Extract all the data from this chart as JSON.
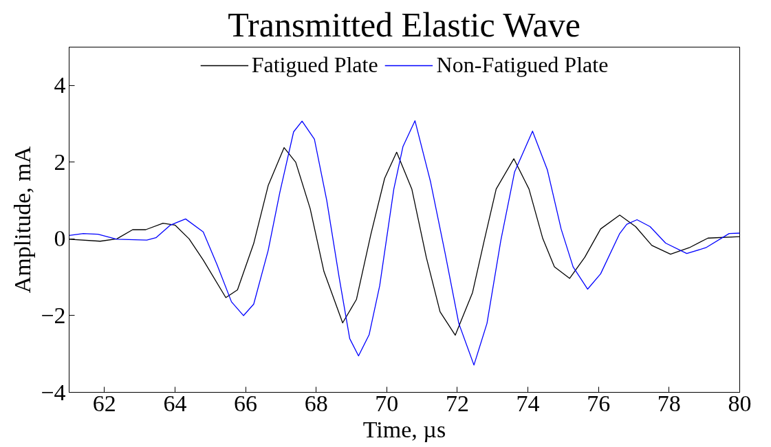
{
  "chart_data": {
    "type": "line",
    "title": "Transmitted Elastic Wave",
    "xlabel": "Time, µs",
    "ylabel": "Amplitude, mA",
    "xlim": [
      61,
      80
    ],
    "ylim": [
      -4,
      5
    ],
    "xticks": [
      62,
      64,
      66,
      68,
      70,
      72,
      74,
      76,
      78,
      80
    ],
    "yticks": [
      -4,
      -2,
      0,
      2,
      4
    ],
    "grid": false,
    "legend": "top",
    "marker": "none",
    "line_style": "solid",
    "series": [
      {
        "name": "Fatigued Plate",
        "color": "#000000",
        "x": [
          61,
          61.88,
          62.35,
          62.8,
          63.17,
          63.66,
          64.0,
          64.4,
          64.8,
          65.44,
          65.77,
          66.23,
          66.64,
          67.09,
          67.42,
          67.83,
          68.22,
          68.75,
          69.14,
          69.55,
          69.94,
          70.28,
          70.71,
          71.12,
          71.51,
          71.94,
          72.43,
          72.76,
          73.1,
          73.6,
          74.03,
          74.42,
          74.75,
          75.18,
          75.61,
          76.06,
          76.6,
          77.05,
          77.51,
          78.04,
          78.57,
          79.1,
          80
        ],
        "values": [
          -0.01,
          -0.06,
          0.0,
          0.24,
          0.24,
          0.41,
          0.36,
          0.0,
          -0.55,
          -1.53,
          -1.33,
          -0.12,
          1.39,
          2.38,
          2.0,
          0.79,
          -0.85,
          -2.19,
          -1.58,
          0.12,
          1.58,
          2.26,
          1.3,
          -0.48,
          -1.9,
          -2.51,
          -1.4,
          -0.05,
          1.3,
          2.09,
          1.3,
          0.01,
          -0.73,
          -1.03,
          -0.48,
          0.26,
          0.62,
          0.32,
          -0.17,
          -0.4,
          -0.23,
          0.02,
          0.06
        ]
      },
      {
        "name": "Non-Fatigued Plate",
        "color": "#0000ff",
        "x": [
          61,
          61.4,
          61.82,
          62.35,
          63.2,
          63.46,
          63.87,
          64.3,
          64.8,
          65.19,
          65.6,
          65.94,
          66.23,
          66.64,
          66.97,
          67.36,
          67.6,
          67.95,
          68.3,
          68.65,
          68.95,
          69.2,
          69.5,
          69.8,
          70.2,
          70.46,
          70.8,
          71.24,
          71.65,
          72.04,
          72.47,
          72.84,
          73.23,
          73.62,
          74.13,
          74.55,
          74.94,
          75.28,
          75.69,
          76.06,
          76.6,
          76.8,
          77.09,
          77.46,
          77.9,
          78.5,
          79.04,
          79.7,
          80
        ],
        "values": [
          0.09,
          0.14,
          0.12,
          -0.01,
          -0.03,
          0.03,
          0.36,
          0.52,
          0.18,
          -0.67,
          -1.64,
          -2.0,
          -1.7,
          -0.3,
          1.21,
          2.79,
          3.07,
          2.6,
          1.0,
          -1.0,
          -2.6,
          -3.05,
          -2.5,
          -1.22,
          1.3,
          2.41,
          3.08,
          1.49,
          -0.36,
          -2.2,
          -3.29,
          -2.2,
          -0.05,
          1.74,
          2.81,
          1.8,
          0.26,
          -0.73,
          -1.31,
          -0.91,
          0.14,
          0.38,
          0.5,
          0.32,
          -0.11,
          -0.38,
          -0.23,
          0.14,
          0.15
        ]
      }
    ]
  }
}
